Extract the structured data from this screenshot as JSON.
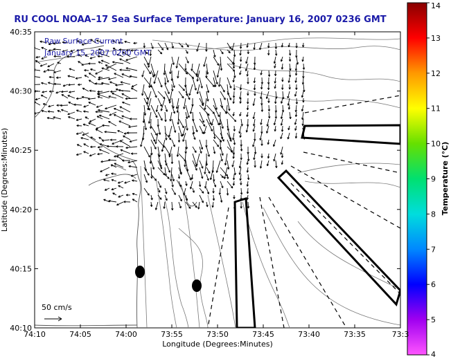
{
  "title": "RU COOL  NOAA–17  Sea Surface Temperature:  January 16, 2007 0236 GMT",
  "legend": {
    "line1": "Raw Surface Current",
    "line2": "January 15, 2007 0200 GMT"
  },
  "scale_label": "50 cm/s",
  "x_axis": {
    "label": "Longitude (Degrees:Minutes)",
    "ticks": [
      "74:10",
      "74:05",
      "74:00",
      "73:55",
      "73:50",
      "73:45",
      "73:40",
      "73:35",
      "73:3"
    ]
  },
  "y_axis": {
    "label": "Latitude (Degrees:Minutes)",
    "ticks": [
      "40:35",
      "40:30",
      "40:25",
      "40:20",
      "40:15",
      "40:10"
    ]
  },
  "colorbar": {
    "label": "Temperature (°C)",
    "ticks": [
      "14",
      "13",
      "12",
      "11",
      "10",
      "9",
      "8",
      "7",
      "6",
      "5",
      "4"
    ],
    "min": 4,
    "max": 14,
    "stops": [
      "#ff55ff",
      "#a000f0",
      "#0000ff",
      "#0088ff",
      "#00dddd",
      "#00e070",
      "#66e000",
      "#ffff00",
      "#ff9900",
      "#ff0000",
      "#880000"
    ]
  }
}
